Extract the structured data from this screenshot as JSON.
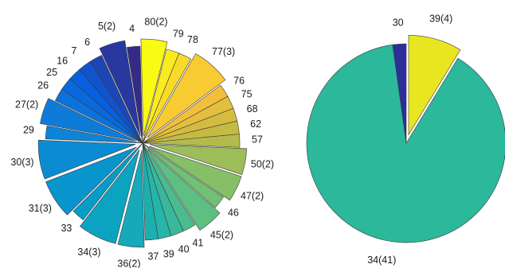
{
  "chart_data": [
    {
      "type": "pie",
      "title": "",
      "colormap": "parula",
      "slices": [
        {
          "label": "80(2)",
          "value": 2,
          "exploded": true
        },
        {
          "label": "79",
          "value": 1
        },
        {
          "label": "78",
          "value": 1
        },
        {
          "label": "77(3)",
          "value": 3,
          "exploded": true
        },
        {
          "label": "76",
          "value": 1
        },
        {
          "label": "75",
          "value": 1
        },
        {
          "label": "68",
          "value": 1
        },
        {
          "label": "62",
          "value": 1
        },
        {
          "label": "57",
          "value": 1
        },
        {
          "label": "50(2)",
          "value": 2,
          "exploded": true
        },
        {
          "label": "47(2)",
          "value": 2,
          "exploded": true
        },
        {
          "label": "46",
          "value": 1
        },
        {
          "label": "45(2)",
          "value": 2,
          "exploded": true
        },
        {
          "label": "41",
          "value": 1
        },
        {
          "label": "40",
          "value": 1
        },
        {
          "label": "39",
          "value": 1
        },
        {
          "label": "37",
          "value": 1
        },
        {
          "label": "36(2)",
          "value": 2,
          "exploded": true
        },
        {
          "label": "34(3)",
          "value": 3,
          "exploded": true
        },
        {
          "label": "33",
          "value": 1
        },
        {
          "label": "31(3)",
          "value": 3,
          "exploded": true
        },
        {
          "label": "30(3)",
          "value": 3,
          "exploded": true
        },
        {
          "label": "29",
          "value": 1
        },
        {
          "label": "27(2)",
          "value": 2,
          "exploded": true
        },
        {
          "label": "26",
          "value": 1
        },
        {
          "label": "25",
          "value": 1
        },
        {
          "label": "16",
          "value": 1
        },
        {
          "label": "7",
          "value": 1
        },
        {
          "label": "6",
          "value": 1
        },
        {
          "label": "5(2)",
          "value": 2,
          "exploded": true
        },
        {
          "label": "4",
          "value": 1
        }
      ]
    },
    {
      "type": "pie",
      "title": "",
      "slices": [
        {
          "label": "39(4)",
          "value": 4,
          "exploded": true,
          "color": "#e8e620"
        },
        {
          "label": "34(41)",
          "value": 41,
          "color": "#2bb89b"
        },
        {
          "label": "30",
          "value": 1,
          "color": "#2c2e9a"
        }
      ]
    }
  ]
}
